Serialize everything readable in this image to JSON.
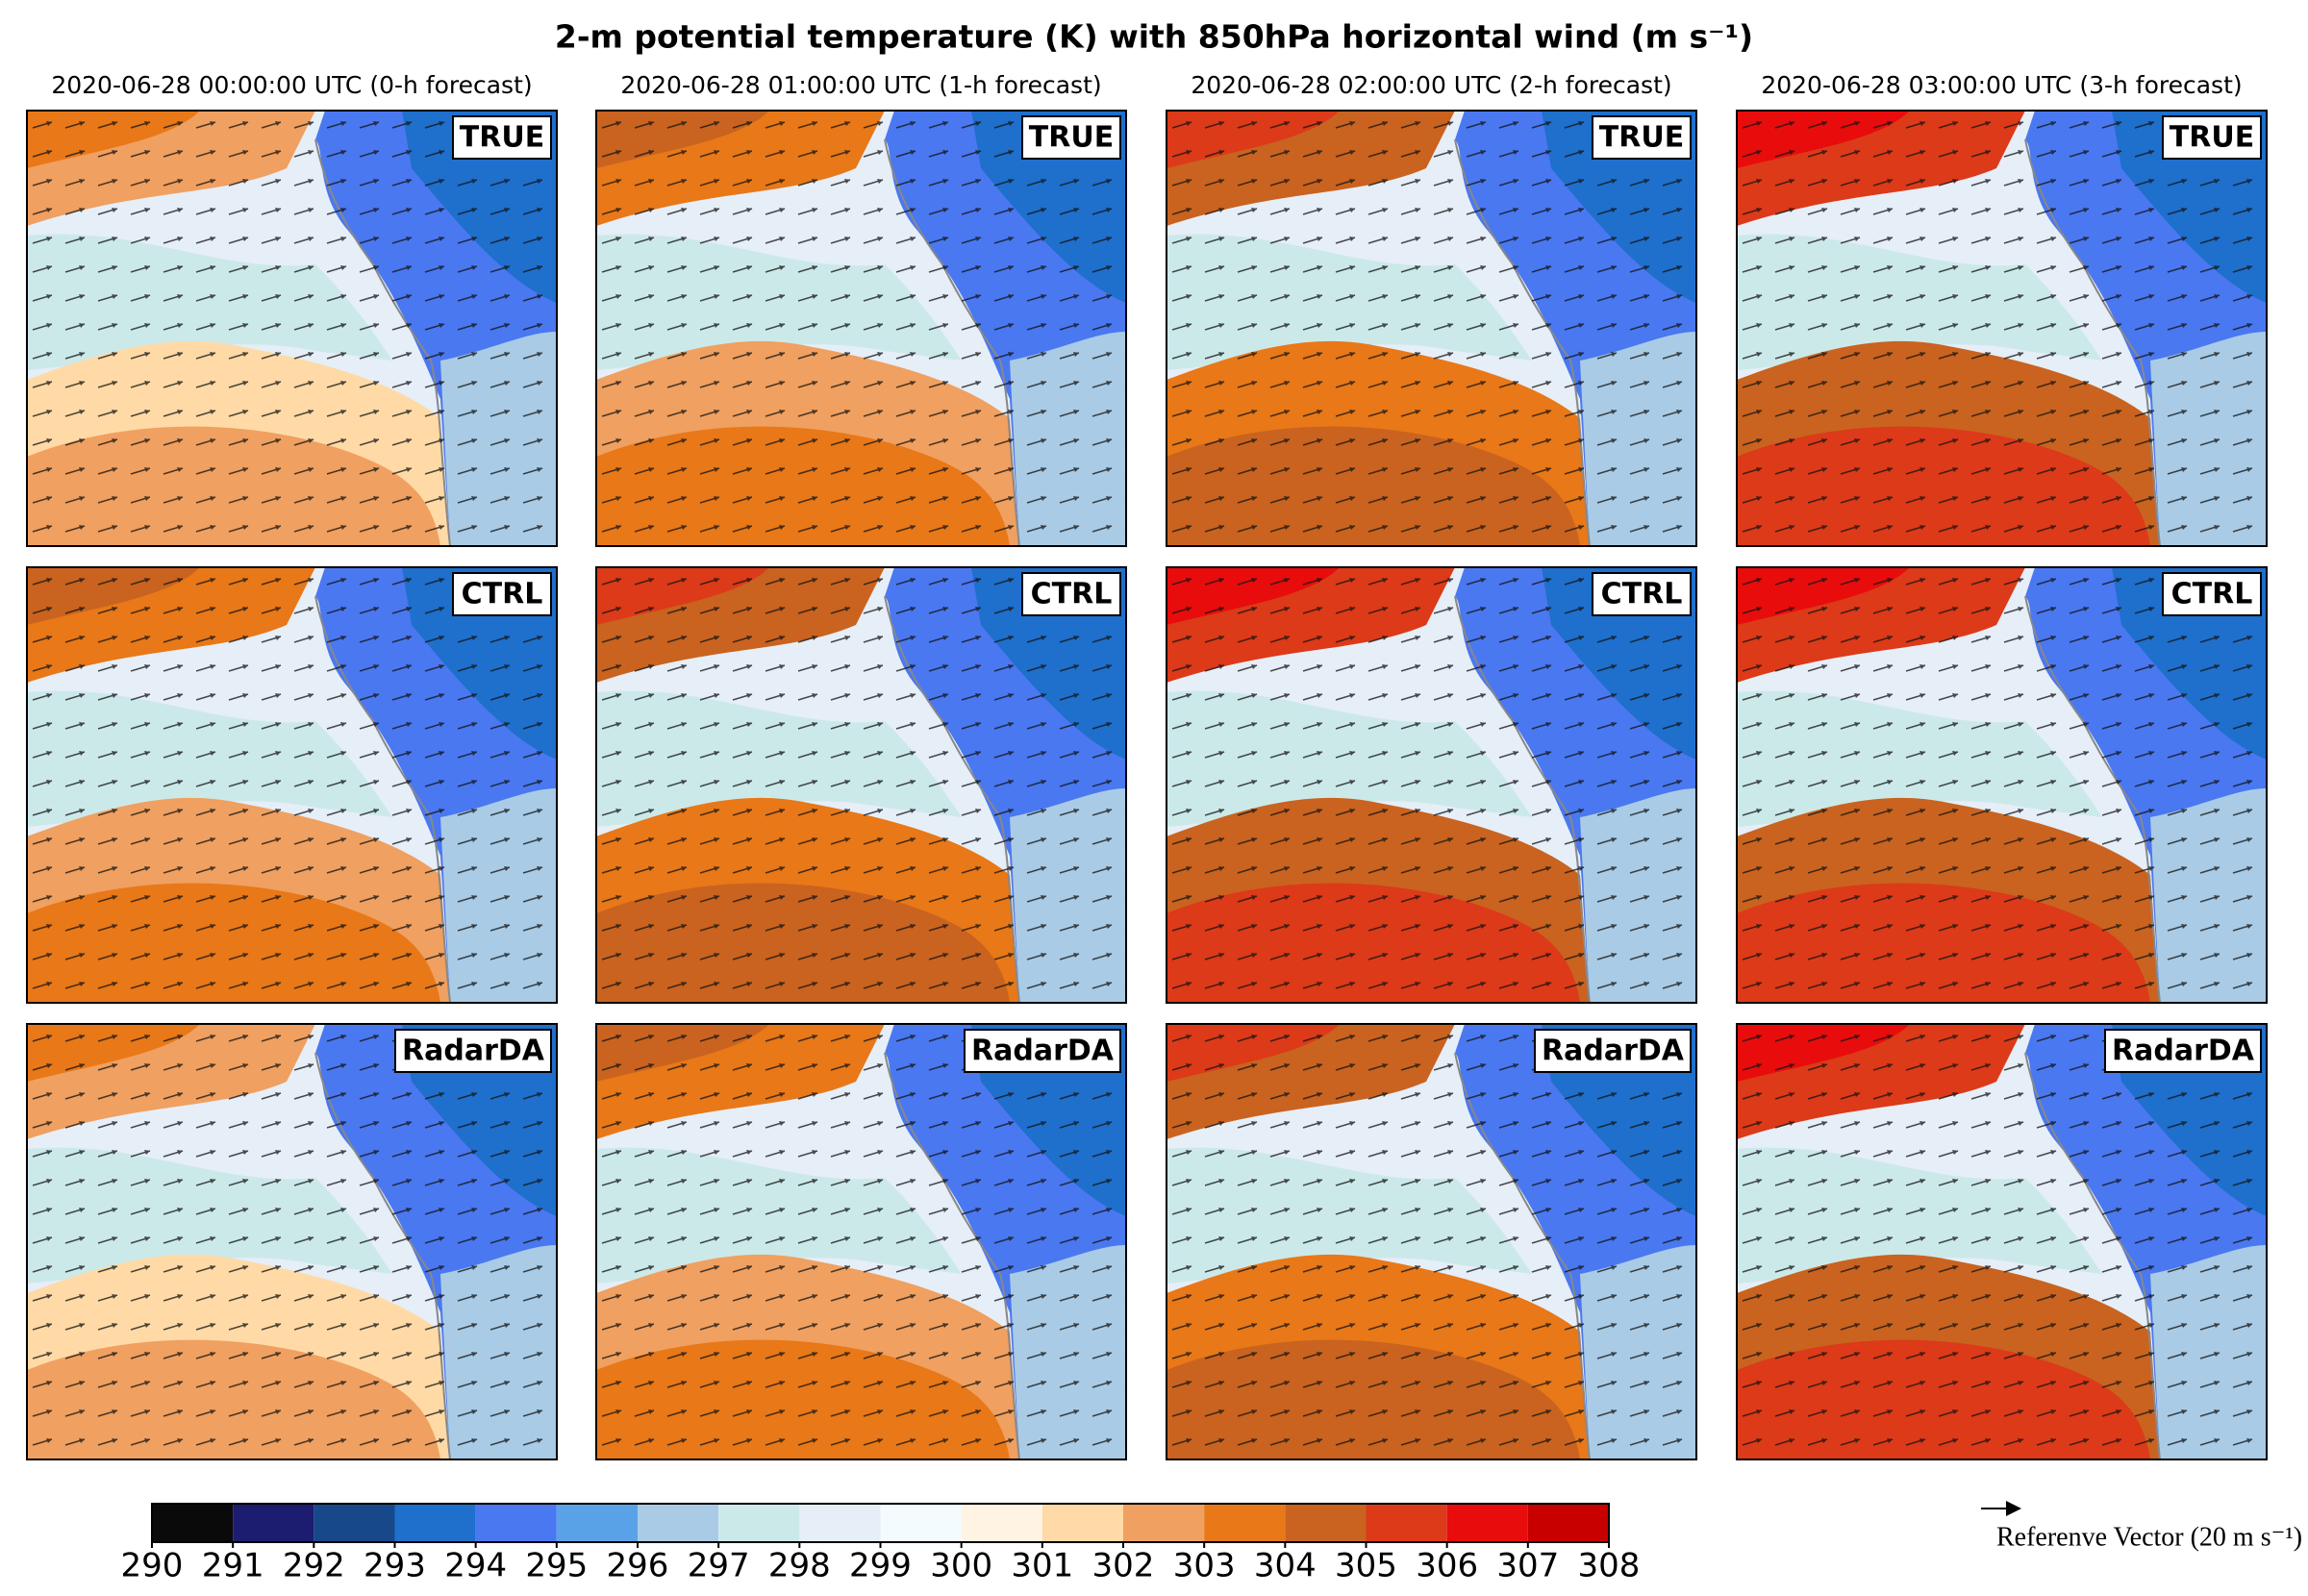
{
  "title": "2-m potential temperature (K) with 850hPa horizontal wind (m s⁻¹)",
  "columns": [
    "2020-06-28 00:00:00 UTC (0-h forecast)",
    "2020-06-28 01:00:00 UTC (1-h forecast)",
    "2020-06-28 02:00:00 UTC (2-h forecast)",
    "2020-06-28 03:00:00 UTC (3-h forecast)"
  ],
  "rows": [
    "TRUE",
    "CTRL",
    "RadarDA"
  ],
  "colorbar": {
    "ticks": [
      290,
      291,
      292,
      293,
      294,
      295,
      296,
      297,
      298,
      299,
      300,
      301,
      302,
      303,
      304,
      305,
      306,
      307,
      308
    ],
    "colors": [
      "#0a0a0a",
      "#1c1c70",
      "#17498a",
      "#1f6fcc",
      "#4a78f0",
      "#5aa2e8",
      "#a9cbe6",
      "#cce9ea",
      "#e6eef8",
      "#f3fbff",
      "#fff3e3",
      "#ffdaa6",
      "#f0a060",
      "#e87818",
      "#c9631f",
      "#dc3a18",
      "#e80c0c",
      "#c80000"
    ]
  },
  "reference_vector": "Referenve Vector (20 m s⁻¹)"
}
